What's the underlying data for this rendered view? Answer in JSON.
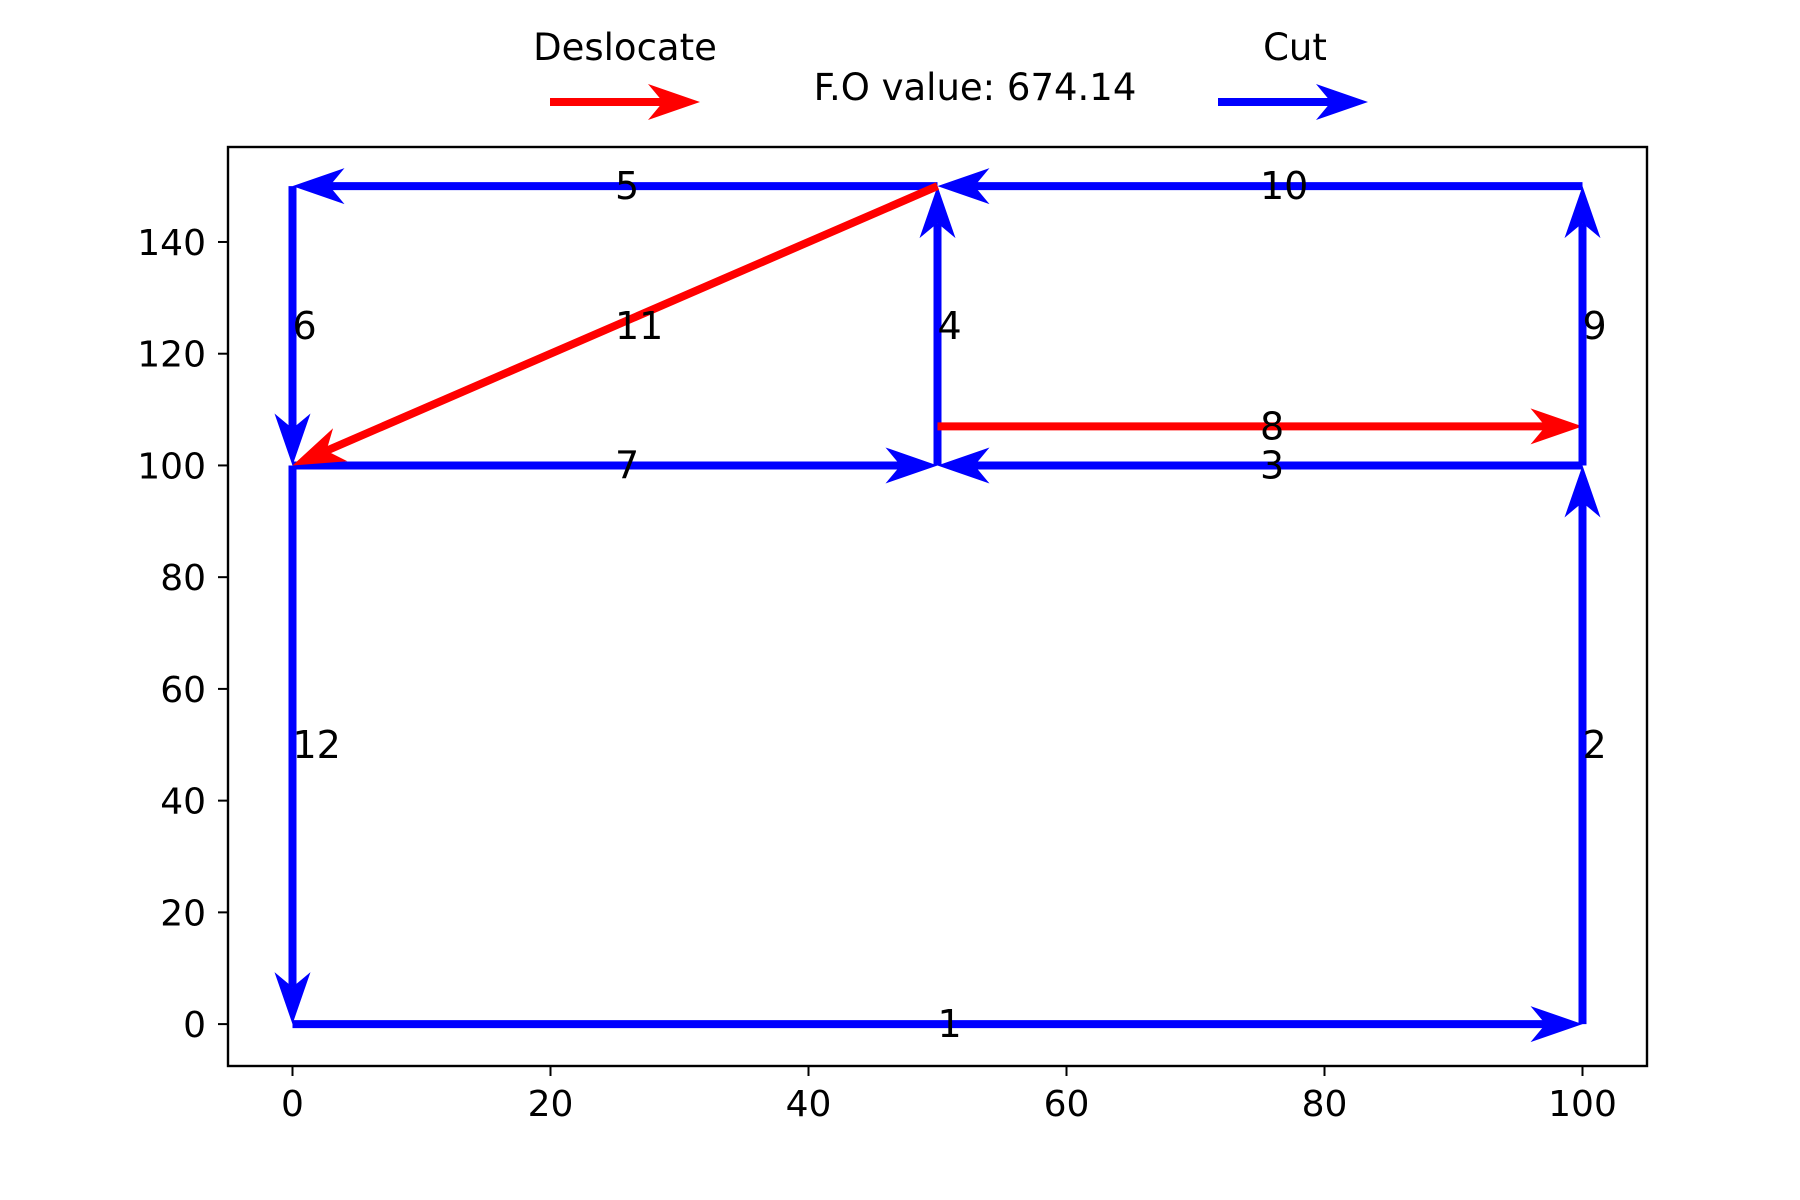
{
  "chart_data": {
    "type": "directed-graph",
    "title": "F.O value: 674.14",
    "xlabel": "",
    "ylabel": "",
    "xlim": [
      -5,
      105
    ],
    "ylim": [
      -7.5,
      157
    ],
    "x_ticks": [
      0,
      20,
      40,
      60,
      80,
      100
    ],
    "y_ticks": [
      0,
      20,
      40,
      60,
      80,
      100,
      120,
      140
    ],
    "grid": false,
    "legend": {
      "placement": "top",
      "entries": [
        {
          "name": "Deslocate",
          "color": "#ff0000"
        },
        {
          "name": "Cut",
          "color": "#0000ff"
        }
      ]
    },
    "edges": [
      {
        "label": "1",
        "type": "Cut",
        "from": [
          0,
          0
        ],
        "to": [
          100,
          0
        ]
      },
      {
        "label": "2",
        "type": "Cut",
        "from": [
          100,
          0
        ],
        "to": [
          100,
          100
        ]
      },
      {
        "label": "3",
        "type": "Cut",
        "from": [
          100,
          100
        ],
        "to": [
          50,
          100
        ]
      },
      {
        "label": "4",
        "type": "Cut",
        "from": [
          50,
          100
        ],
        "to": [
          50,
          150
        ]
      },
      {
        "label": "5",
        "type": "Cut",
        "from": [
          50,
          150
        ],
        "to": [
          0,
          150
        ]
      },
      {
        "label": "6",
        "type": "Cut",
        "from": [
          0,
          150
        ],
        "to": [
          0,
          100
        ]
      },
      {
        "label": "7",
        "type": "Cut",
        "from": [
          0,
          100
        ],
        "to": [
          50,
          100
        ]
      },
      {
        "label": "8",
        "type": "Deslocate",
        "from": [
          50,
          107
        ],
        "to": [
          100,
          107
        ]
      },
      {
        "label": "9",
        "type": "Cut",
        "from": [
          100,
          100
        ],
        "to": [
          100,
          150
        ]
      },
      {
        "label": "10",
        "type": "Cut",
        "from": [
          100,
          150
        ],
        "to": [
          50,
          150
        ]
      },
      {
        "label": "11",
        "type": "Deslocate",
        "from": [
          50,
          150
        ],
        "to": [
          0,
          100
        ]
      },
      {
        "label": "12",
        "type": "Cut",
        "from": [
          0,
          100
        ],
        "to": [
          0,
          0
        ]
      }
    ]
  }
}
